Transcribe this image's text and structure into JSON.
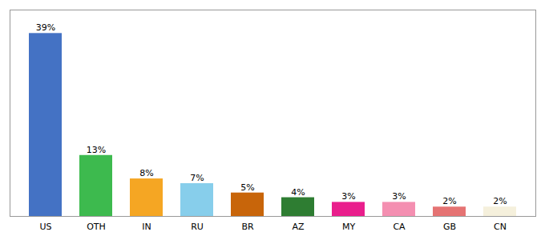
{
  "chart_data": {
    "type": "bar",
    "categories": [
      "US",
      "OTH",
      "IN",
      "RU",
      "BR",
      "AZ",
      "MY",
      "CA",
      "GB",
      "CN"
    ],
    "values": [
      39,
      13,
      8,
      7,
      5,
      4,
      3,
      3,
      2,
      2
    ],
    "value_labels": [
      "39%",
      "13%",
      "8%",
      "7%",
      "5%",
      "4%",
      "3%",
      "3%",
      "2%",
      "2%"
    ],
    "colors": [
      "#4472c4",
      "#3dba4e",
      "#f5a623",
      "#87ceeb",
      "#c8650a",
      "#2e7d32",
      "#e91e8c",
      "#f48fb1",
      "#e57373",
      "#f5f0dc"
    ],
    "ylim": [
      0,
      44
    ],
    "data_labels": true,
    "tick_labels": "x",
    "grid": false
  }
}
